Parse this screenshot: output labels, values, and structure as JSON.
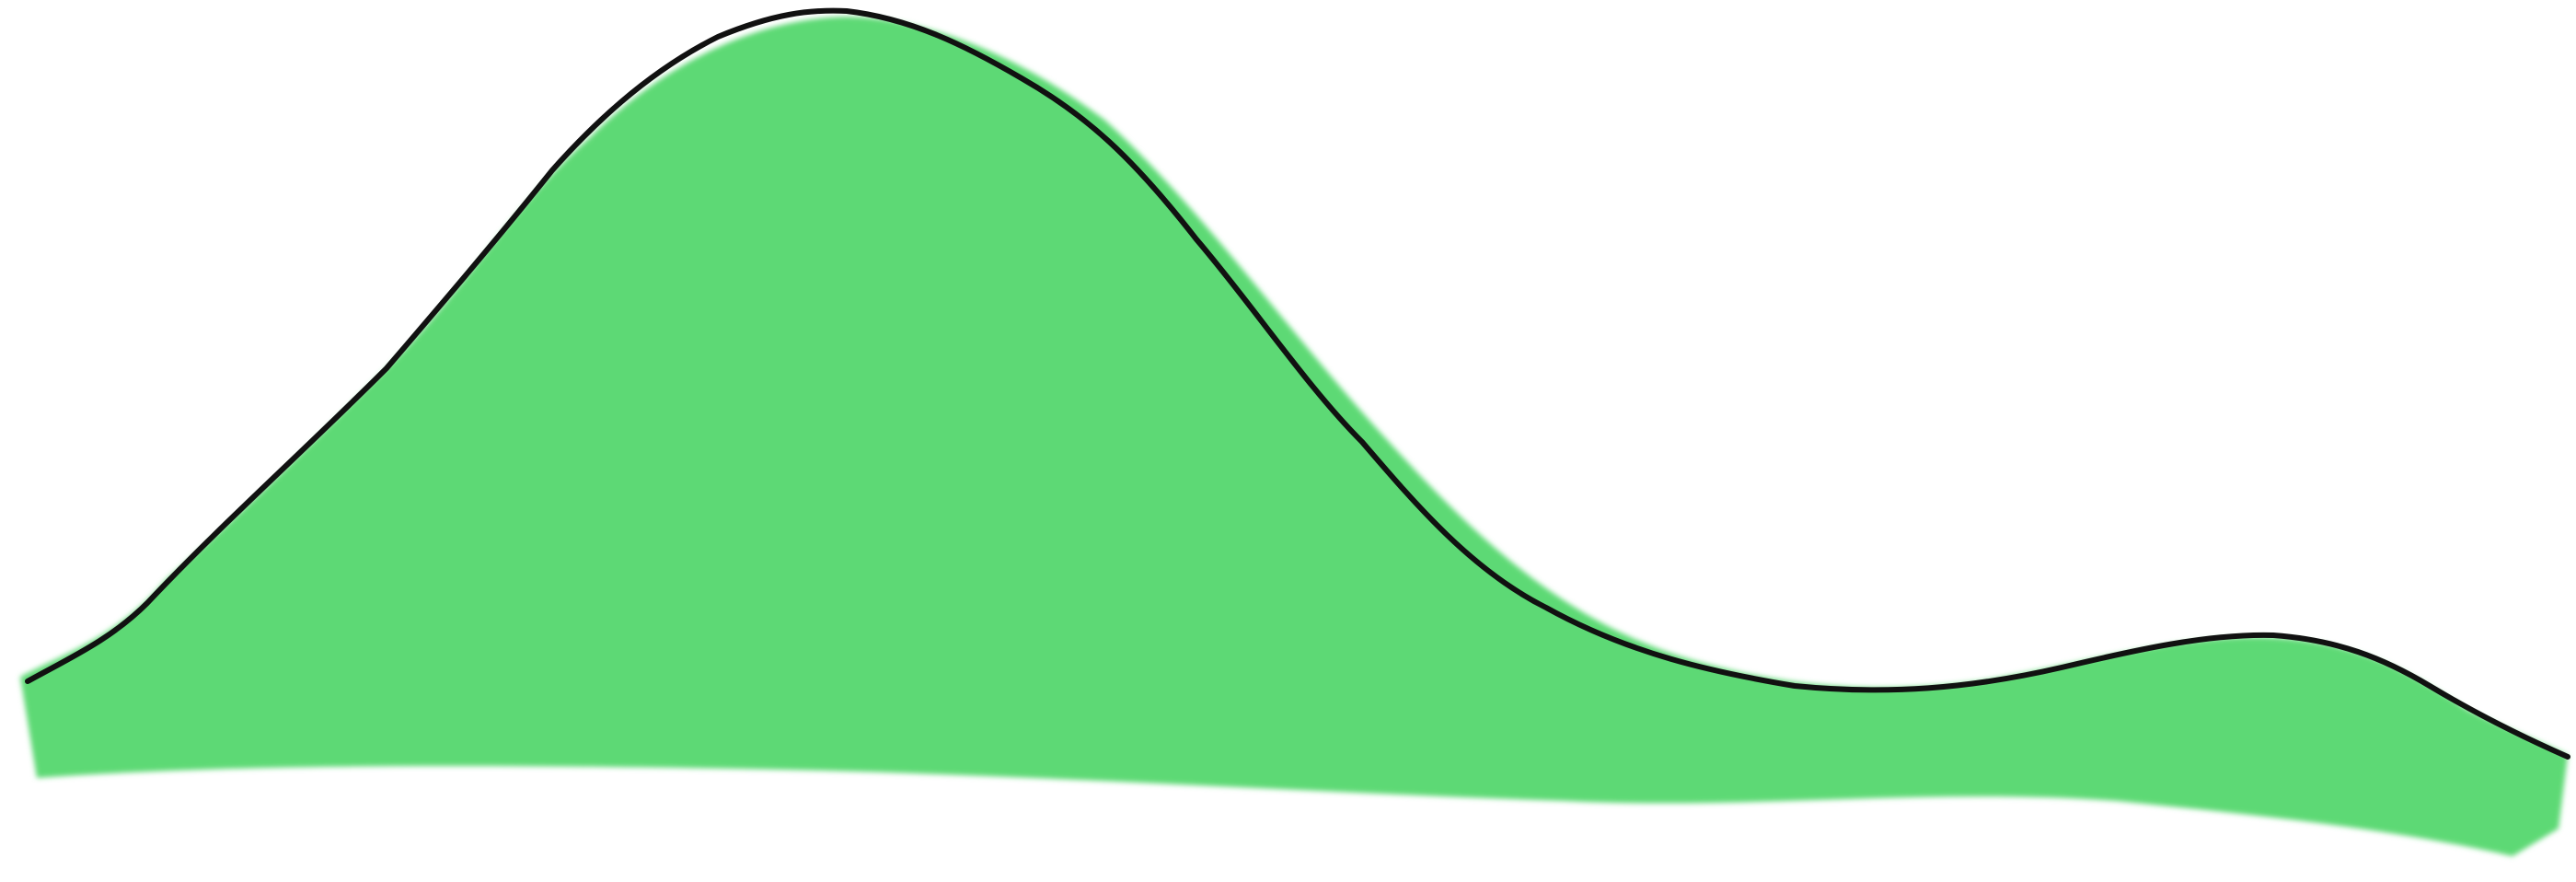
{
  "drawing": {
    "style": "hand-drawn",
    "shape": "bimodal-curve",
    "fill_color": "#5dd975",
    "line_color": "#111111",
    "background_color": "#ffffff"
  }
}
